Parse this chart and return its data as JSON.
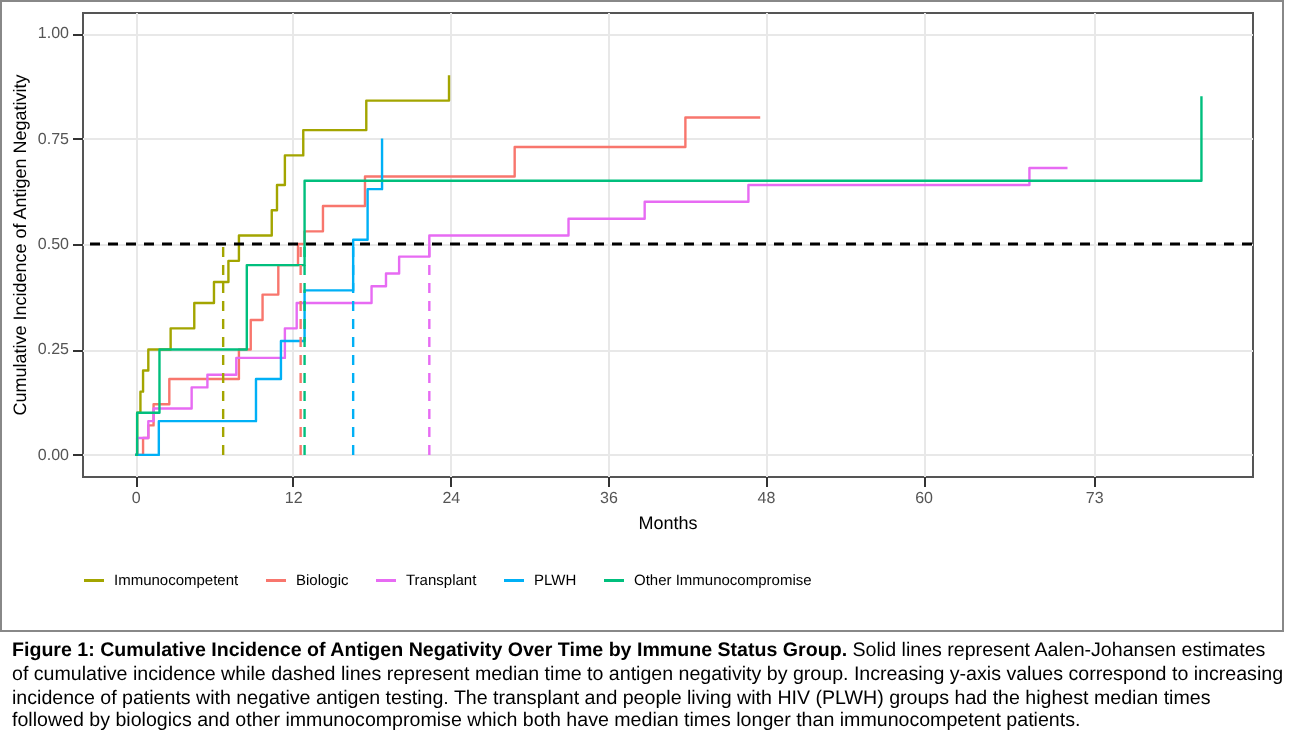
{
  "chart_data": {
    "type": "step",
    "xlabel": "Months",
    "ylabel": "Cumulative Incidence of Antigen Negativity",
    "annotations": [
      "Figure 1: Cumulative Incidence of Antigen Negativity Over Time by Immune Status Group.",
      "Solid lines represent Aalen-Johansen estimates of cumulative incidence while dashed lines represent median time to antigen negativity by group. Increasing y-axis values correspond to increasing incidence of patients with negative antigen testing. The transplant and people living with HIV (PLWH) groups had the highest median times followed by biologics and other immunocompromise which both have median times longer than immunocompetent patients."
    ],
    "xlim": [
      -4.05,
      85.05
    ],
    "ylim": [
      -0.05,
      1.05
    ],
    "xticks": [
      0,
      12,
      24,
      36,
      48,
      60,
      73
    ],
    "yticks": [
      {
        "value": 0,
        "label": "0.00"
      },
      {
        "value": 0.25,
        "label": "0.25"
      },
      {
        "value": 0.5,
        "label": "0.50"
      },
      {
        "value": 0.75,
        "label": "0.75"
      },
      {
        "value": 1,
        "label": "1.00"
      }
    ],
    "grid": true,
    "legend": "bottom",
    "series": [
      {
        "name": "Immunocompetent",
        "color": "#a3a500",
        "x": [
          0,
          0.15,
          0.4,
          0.6,
          1.0,
          2.7,
          4.5,
          6.0,
          7.1,
          7.9,
          10.4,
          10.8,
          11.4,
          12.8,
          17.6,
          23.9,
          23.9
        ],
        "values": [
          0,
          0.1,
          0.15,
          0.2,
          0.25,
          0.3,
          0.36,
          0.41,
          0.46,
          0.52,
          0.58,
          0.64,
          0.71,
          0.77,
          0.84,
          0.9,
          0.9
        ]
      },
      {
        "name": "Biologic",
        "color": "#f8766d",
        "x": [
          0,
          0.6,
          1.0,
          1.4,
          2.6,
          7.9,
          8.8,
          9.7,
          10.9,
          12.4,
          12.9,
          14.3,
          17.5,
          28.9,
          41.9,
          47.6
        ],
        "values": [
          0,
          0.04,
          0.07,
          0.12,
          0.18,
          0.25,
          0.32,
          0.38,
          0.45,
          0.5,
          0.53,
          0.59,
          0.66,
          0.73,
          0.8,
          0.8
        ]
      },
      {
        "name": "Transplant",
        "color": "#e76bf3",
        "x": [
          0,
          0.15,
          1.0,
          1.4,
          4.3,
          5.5,
          7.7,
          11.4,
          12.3,
          18.0,
          19.1,
          20.1,
          22.4,
          33.0,
          38.8,
          46.7,
          68.1,
          71.0
        ],
        "values": [
          0,
          0.04,
          0.08,
          0.11,
          0.16,
          0.19,
          0.23,
          0.3,
          0.36,
          0.4,
          0.43,
          0.47,
          0.52,
          0.56,
          0.6,
          0.64,
          0.68,
          0.68
        ]
      },
      {
        "name": "PLWH",
        "color": "#00b0f6",
        "x": [
          0,
          1.8,
          9.2,
          11.1,
          12.9,
          16.6,
          17.7,
          18.8
        ],
        "values": [
          0,
          0.08,
          0.18,
          0.27,
          0.39,
          0.51,
          0.63,
          0.75
        ]
      },
      {
        "name": "Other Immunocompromise",
        "color": "#00bf7d",
        "x": [
          0,
          0.15,
          1.85,
          8.5,
          12.9,
          81.2
        ],
        "values": [
          0,
          0.1,
          0.25,
          0.45,
          0.65,
          0.85
        ]
      },
      {
        "type": "line",
        "line_style": "dashed",
        "color": "#a3a500",
        "x": [
          6.7,
          6.7
        ],
        "values": [
          0,
          0.5
        ]
      },
      {
        "type": "line",
        "line_style": "dashed",
        "color": "#f8766d",
        "x": [
          12.6,
          12.6
        ],
        "values": [
          0,
          0.5
        ]
      },
      {
        "type": "line",
        "line_style": "dashed",
        "color": "#00bf7d",
        "x": [
          12.9,
          12.9
        ],
        "values": [
          0,
          0.5
        ]
      },
      {
        "type": "line",
        "line_style": "dashed",
        "color": "#00b0f6",
        "x": [
          16.6,
          16.6
        ],
        "values": [
          0,
          0.5
        ]
      },
      {
        "type": "line",
        "line_style": "dashed",
        "color": "#e76bf3",
        "x": [
          22.4,
          22.4
        ],
        "values": [
          0,
          0.5
        ]
      }
    ],
    "ref_lines": [
      {
        "axis": "y",
        "value": 0.5,
        "color": "#000000",
        "line_style": "dashed"
      }
    ]
  }
}
